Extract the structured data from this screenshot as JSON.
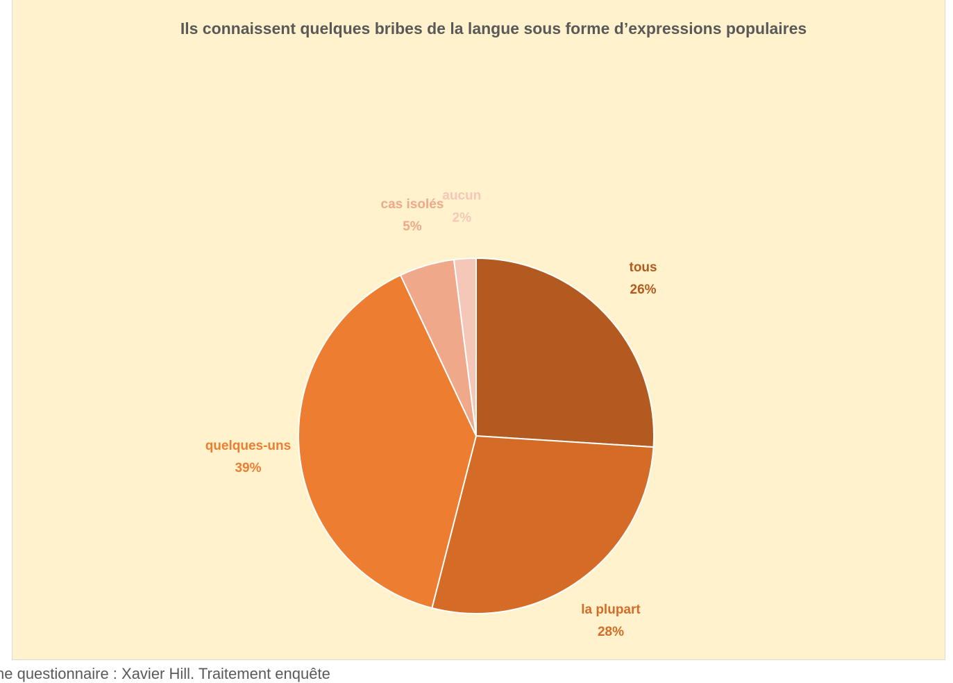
{
  "chart_data": {
    "type": "pie",
    "title": "Ils connaissent quelques bribes de la langue sous forme d’expressions populaires",
    "categories": [
      "tous",
      "la plupart",
      "quelques-uns",
      "cas isolés",
      "aucun"
    ],
    "values": [
      26,
      28,
      39,
      5,
      2
    ],
    "value_labels": [
      "26%",
      "28%",
      "39%",
      "5%",
      "2%"
    ],
    "colors": [
      "#b35a20",
      "#d46c28",
      "#ed7d31",
      "#f0a88a",
      "#f4c7b8"
    ],
    "source": "ne questionnaire : Xavier Hill. Traitement enquête"
  }
}
